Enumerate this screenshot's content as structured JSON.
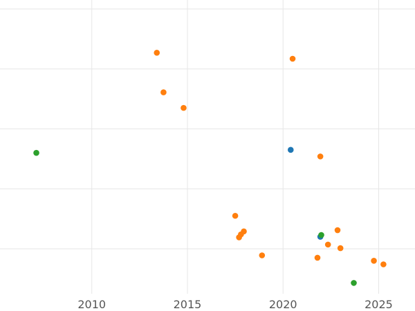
{
  "chart_data": {
    "type": "scatter",
    "title": "",
    "xlabel": "",
    "ylabel": "",
    "xlim": [
      2005.2,
      2026.9
    ],
    "ylim": [
      0,
      4.9
    ],
    "grid": true,
    "x_ticks": [
      2010,
      2015,
      2020,
      2025
    ],
    "x_tick_labels": [
      "2010",
      "2015",
      "2020",
      "2025"
    ],
    "y_gridlines": [
      0.75,
      1.75,
      2.75,
      3.75,
      4.75
    ],
    "series": [
      {
        "color": "#1f77b4",
        "points": [
          {
            "x": 2020.4,
            "y": 2.4
          },
          {
            "x": 2021.95,
            "y": 0.95
          }
        ]
      },
      {
        "color": "#ff7f0e",
        "points": [
          {
            "x": 2013.4,
            "y": 4.02
          },
          {
            "x": 2020.5,
            "y": 3.92
          },
          {
            "x": 2013.75,
            "y": 3.36
          },
          {
            "x": 2014.8,
            "y": 3.1
          },
          {
            "x": 2021.95,
            "y": 2.29
          },
          {
            "x": 2017.5,
            "y": 1.3
          },
          {
            "x": 2022.85,
            "y": 1.06
          },
          {
            "x": 2017.95,
            "y": 1.04
          },
          {
            "x": 2017.8,
            "y": 0.99
          },
          {
            "x": 2017.7,
            "y": 0.94
          },
          {
            "x": 2022.35,
            "y": 0.82
          },
          {
            "x": 2023.0,
            "y": 0.76
          },
          {
            "x": 2018.9,
            "y": 0.64
          },
          {
            "x": 2021.8,
            "y": 0.6
          },
          {
            "x": 2024.75,
            "y": 0.55
          },
          {
            "x": 2025.25,
            "y": 0.49
          }
        ]
      },
      {
        "color": "#2ca02c",
        "points": [
          {
            "x": 2007.1,
            "y": 2.35
          },
          {
            "x": 2022.0,
            "y": 0.98
          },
          {
            "x": 2023.7,
            "y": 0.18
          }
        ]
      }
    ]
  }
}
